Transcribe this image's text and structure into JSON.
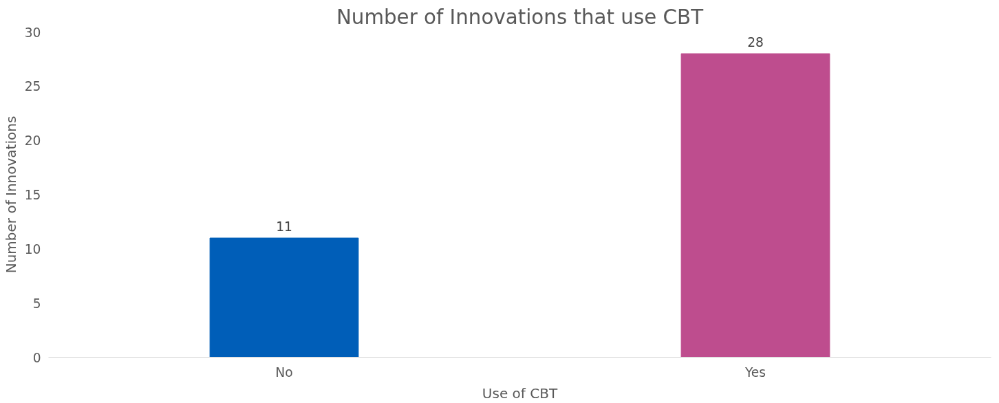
{
  "chart_data": {
    "type": "bar",
    "title": "Number of Innovations that use CBT",
    "xlabel": "Use of CBT",
    "ylabel": "Number of Innovations",
    "categories": [
      "No",
      "Yes"
    ],
    "values": [
      11,
      28
    ],
    "colors": [
      "#005eb8",
      "#be4d8e"
    ],
    "ylim": [
      0,
      30
    ],
    "yticks": [
      0,
      5,
      10,
      15,
      20,
      25,
      30
    ],
    "grid": false,
    "data_labels": true
  }
}
